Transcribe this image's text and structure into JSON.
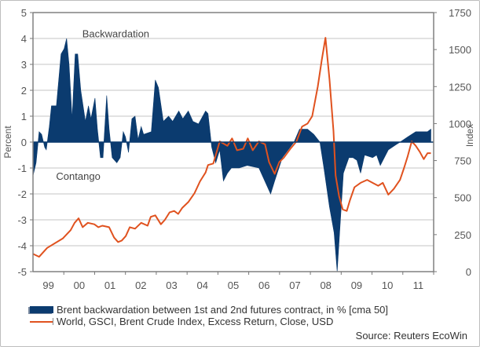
{
  "chart_data": {
    "type": "area+line",
    "title": "",
    "x_axis": {
      "tick_labels": [
        "99",
        "00",
        "01",
        "02",
        "03",
        "04",
        "05",
        "06",
        "07",
        "08",
        "09",
        "10",
        "11"
      ],
      "range": [
        1999.0,
        2012.0
      ]
    },
    "y_left": {
      "label": "Percent",
      "range": [
        -5,
        5
      ],
      "ticks": [
        5,
        4,
        3,
        2,
        1,
        0,
        -1,
        -2,
        -3,
        -4,
        -5
      ]
    },
    "y_right": {
      "label": "Index",
      "range": [
        0,
        1750
      ],
      "ticks": [
        1750,
        1500,
        1250,
        1000,
        750,
        500,
        250,
        0
      ]
    },
    "grid": true,
    "annotations": {
      "upper": "Backwardation",
      "lower": "Contango"
    },
    "series": [
      {
        "name": "Brent backwardation between 1st and 2nd futures contract, in % [cma 50]",
        "type": "area",
        "axis": "left",
        "color": "#0b3b6f",
        "points": [
          [
            1999.0,
            -1.3
          ],
          [
            1999.1,
            -0.8
          ],
          [
            1999.2,
            0.4
          ],
          [
            1999.28,
            0.3
          ],
          [
            1999.38,
            -0.2
          ],
          [
            1999.43,
            -0.3
          ],
          [
            1999.53,
            0.6
          ],
          [
            1999.6,
            1.4
          ],
          [
            1999.76,
            1.4
          ],
          [
            1999.91,
            3.4
          ],
          [
            2000.01,
            3.6
          ],
          [
            2000.09,
            4.0
          ],
          [
            2000.17,
            3.0
          ],
          [
            2000.27,
            0.9
          ],
          [
            2000.37,
            3.4
          ],
          [
            2000.45,
            3.4
          ],
          [
            2000.55,
            2.0
          ],
          [
            2000.7,
            0.8
          ],
          [
            2000.8,
            1.4
          ],
          [
            2000.88,
            0.9
          ],
          [
            2001.01,
            1.7
          ],
          [
            2001.09,
            0.5
          ],
          [
            2001.19,
            -0.6
          ],
          [
            2001.27,
            -0.6
          ],
          [
            2001.39,
            1.8
          ],
          [
            2001.47,
            0.5
          ],
          [
            2001.57,
            -0.6
          ],
          [
            2001.72,
            -0.8
          ],
          [
            2001.83,
            -0.6
          ],
          [
            2001.93,
            0.4
          ],
          [
            2002.0,
            0.2
          ],
          [
            2002.1,
            -0.4
          ],
          [
            2002.21,
            0.9
          ],
          [
            2002.31,
            1.0
          ],
          [
            2002.41,
            0.1
          ],
          [
            2002.51,
            0.6
          ],
          [
            2002.59,
            0.3
          ],
          [
            2002.84,
            0.4
          ],
          [
            2002.97,
            2.4
          ],
          [
            2003.07,
            2.1
          ],
          [
            2003.23,
            0.8
          ],
          [
            2003.4,
            1.0
          ],
          [
            2003.53,
            0.8
          ],
          [
            2003.73,
            1.2
          ],
          [
            2003.86,
            0.9
          ],
          [
            2004.04,
            1.2
          ],
          [
            2004.19,
            0.8
          ],
          [
            2004.37,
            0.7
          ],
          [
            2004.6,
            1.2
          ],
          [
            2004.68,
            1.1
          ],
          [
            2004.8,
            -0.2
          ],
          [
            2004.93,
            -0.8
          ],
          [
            2005.06,
            -0.3
          ],
          [
            2005.18,
            -1.5
          ],
          [
            2005.31,
            -1.2
          ],
          [
            2005.44,
            -1.0
          ],
          [
            2005.69,
            -1.0
          ],
          [
            2005.95,
            -0.9
          ],
          [
            2006.33,
            -1.0
          ],
          [
            2006.71,
            -2.0
          ],
          [
            2006.84,
            -1.5
          ],
          [
            2007.09,
            -0.6
          ],
          [
            2007.47,
            0.0
          ],
          [
            2007.65,
            0.5
          ],
          [
            2007.91,
            0.5
          ],
          [
            2008.11,
            0.3
          ],
          [
            2008.31,
            0.0
          ],
          [
            2008.44,
            -1.0
          ],
          [
            2008.62,
            -2.5
          ],
          [
            2008.77,
            -3.5
          ],
          [
            2008.87,
            -5.0
          ],
          [
            2008.95,
            -3.5
          ],
          [
            2009.07,
            -1.2
          ],
          [
            2009.25,
            -0.6
          ],
          [
            2009.38,
            -0.6
          ],
          [
            2009.51,
            -0.7
          ],
          [
            2009.63,
            -1.2
          ],
          [
            2009.76,
            -0.5
          ],
          [
            2010.02,
            -0.6
          ],
          [
            2010.15,
            -0.5
          ],
          [
            2010.27,
            -0.9
          ],
          [
            2010.53,
            -0.3
          ],
          [
            2010.78,
            -0.1
          ],
          [
            2010.91,
            0.0
          ],
          [
            2011.16,
            0.2
          ],
          [
            2011.42,
            0.4
          ],
          [
            2011.8,
            0.4
          ],
          [
            2011.91,
            0.5
          ]
        ]
      },
      {
        "name": "World, GSCI, Brent Crude Index, Excess Return, Close, USD",
        "type": "line",
        "axis": "right",
        "color": "#e0521f",
        "points": [
          [
            1999.0,
            120
          ],
          [
            1999.2,
            100
          ],
          [
            1999.46,
            160
          ],
          [
            1999.97,
            225
          ],
          [
            2000.22,
            280
          ],
          [
            2000.35,
            330
          ],
          [
            2000.48,
            360
          ],
          [
            2000.61,
            300
          ],
          [
            2000.78,
            330
          ],
          [
            2000.99,
            320
          ],
          [
            2001.12,
            300
          ],
          [
            2001.25,
            310
          ],
          [
            2001.47,
            300
          ],
          [
            2001.63,
            230
          ],
          [
            2001.76,
            200
          ],
          [
            2001.88,
            210
          ],
          [
            2002.01,
            240
          ],
          [
            2002.14,
            300
          ],
          [
            2002.31,
            290
          ],
          [
            2002.51,
            330
          ],
          [
            2002.72,
            310
          ],
          [
            2002.82,
            370
          ],
          [
            2002.97,
            380
          ],
          [
            2003.15,
            320
          ],
          [
            2003.28,
            350
          ],
          [
            2003.43,
            400
          ],
          [
            2003.58,
            410
          ],
          [
            2003.71,
            390
          ],
          [
            2003.84,
            430
          ],
          [
            2004.04,
            470
          ],
          [
            2004.24,
            530
          ],
          [
            2004.42,
            610
          ],
          [
            2004.6,
            670
          ],
          [
            2004.68,
            720
          ],
          [
            2004.85,
            730
          ],
          [
            2005.06,
            880
          ],
          [
            2005.31,
            850
          ],
          [
            2005.46,
            900
          ],
          [
            2005.62,
            820
          ],
          [
            2005.82,
            830
          ],
          [
            2005.97,
            900
          ],
          [
            2006.13,
            820
          ],
          [
            2006.33,
            880
          ],
          [
            2006.53,
            860
          ],
          [
            2006.66,
            740
          ],
          [
            2006.84,
            660
          ],
          [
            2006.99,
            740
          ],
          [
            2007.14,
            770
          ],
          [
            2007.35,
            830
          ],
          [
            2007.55,
            880
          ],
          [
            2007.73,
            980
          ],
          [
            2007.91,
            1000
          ],
          [
            2008.06,
            1050
          ],
          [
            2008.24,
            1250
          ],
          [
            2008.37,
            1430
          ],
          [
            2008.49,
            1580
          ],
          [
            2008.62,
            1300
          ],
          [
            2008.75,
            950
          ],
          [
            2008.82,
            650
          ],
          [
            2008.93,
            510
          ],
          [
            2009.05,
            420
          ],
          [
            2009.18,
            410
          ],
          [
            2009.28,
            480
          ],
          [
            2009.43,
            570
          ],
          [
            2009.63,
            600
          ],
          [
            2009.84,
            620
          ],
          [
            2010.02,
            600
          ],
          [
            2010.2,
            580
          ],
          [
            2010.35,
            600
          ],
          [
            2010.53,
            520
          ],
          [
            2010.71,
            560
          ],
          [
            2010.91,
            620
          ],
          [
            2011.04,
            700
          ],
          [
            2011.16,
            780
          ],
          [
            2011.29,
            880
          ],
          [
            2011.42,
            850
          ],
          [
            2011.55,
            810
          ],
          [
            2011.68,
            760
          ],
          [
            2011.8,
            800
          ],
          [
            2011.91,
            800
          ]
        ]
      }
    ],
    "legend": {
      "placement": "bottom-left"
    },
    "source": "Source: Reuters EcoWin"
  }
}
